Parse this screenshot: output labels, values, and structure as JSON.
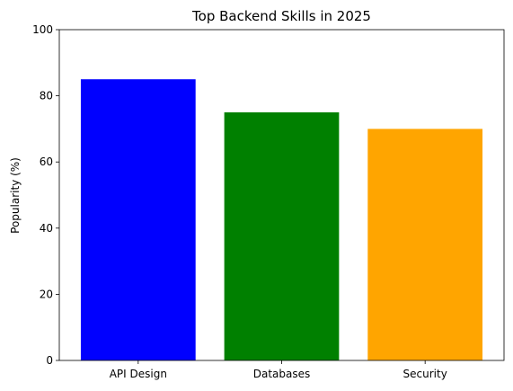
{
  "chart_data": {
    "type": "bar",
    "title": "Top Backend Skills in 2025",
    "xlabel": "",
    "ylabel": "Popularity (%)",
    "categories": [
      "API Design",
      "Databases",
      "Security"
    ],
    "values": [
      85,
      75,
      70
    ],
    "colors": [
      "#0000ff",
      "#008000",
      "#ffa500"
    ],
    "ylim": [
      0,
      100
    ],
    "yticks": [
      0,
      20,
      40,
      60,
      80,
      100
    ],
    "grid": false,
    "legend": "none"
  }
}
